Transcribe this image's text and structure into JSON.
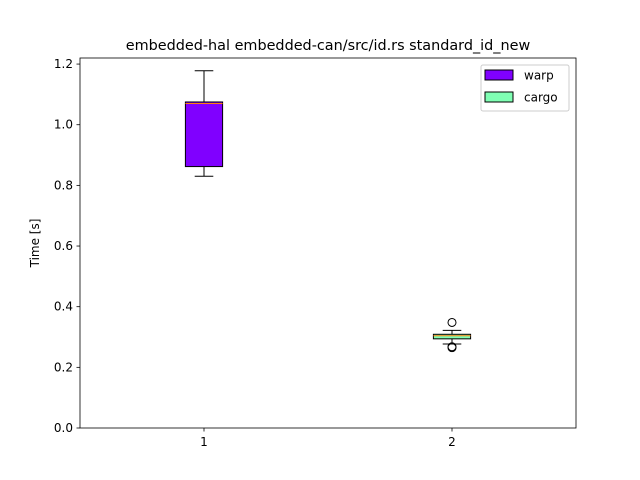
{
  "chart_data": {
    "type": "box",
    "title": "embedded-hal embedded-can/src/id.rs standard_id_new",
    "xlabel": "",
    "ylabel": "Time [s]",
    "ylim": [
      0.0,
      1.22
    ],
    "xlim": [
      0.5,
      2.5
    ],
    "yticks": [
      0.0,
      0.2,
      0.4,
      0.6,
      0.8,
      1.0,
      1.2
    ],
    "ytick_labels": [
      "0.0",
      "0.2",
      "0.4",
      "0.6",
      "0.8",
      "1.0",
      "1.2"
    ],
    "xticks": [
      1,
      2
    ],
    "xtick_labels": [
      "1",
      "2"
    ],
    "grid": false,
    "legend_position": "top-right",
    "series": [
      {
        "name": "warp",
        "color": "#8000ff",
        "position": 1,
        "whisker_low": 0.83,
        "q1": 0.862,
        "median": 1.07,
        "q3": 1.075,
        "whisker_high": 1.178,
        "outliers": []
      },
      {
        "name": "cargo",
        "color": "#80ffb4",
        "position": 2,
        "whisker_low": 0.277,
        "q1": 0.294,
        "median": 0.304,
        "q3": 0.309,
        "whisker_high": 0.322,
        "outliers": [
          0.348,
          0.268,
          0.265
        ]
      }
    ],
    "median_color": "#ff7f0e"
  }
}
